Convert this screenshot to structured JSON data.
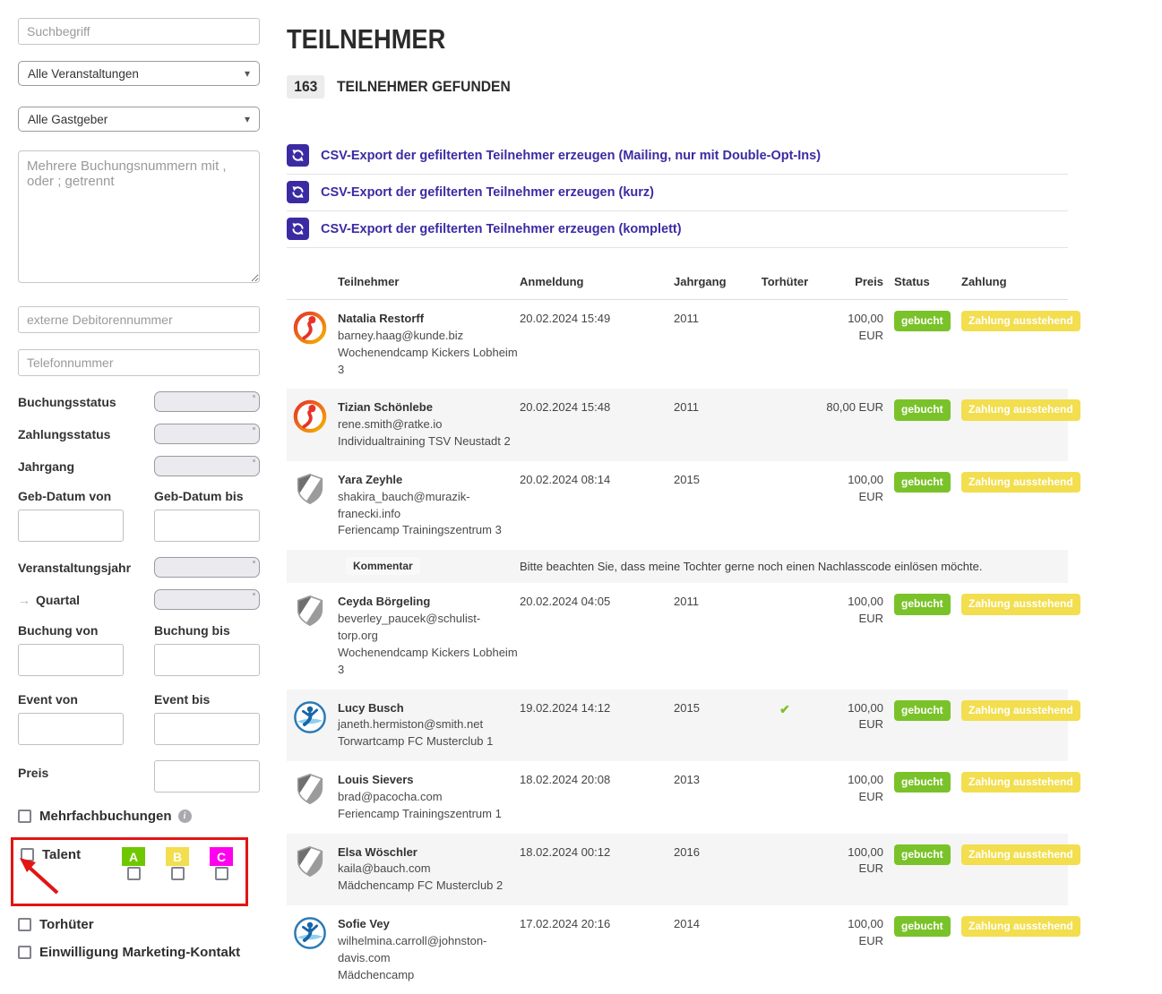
{
  "colors": {
    "accent_indigo": "#3b2ba3",
    "status_green": "#7ac229",
    "payment_yellow": "#f2de4e",
    "annotation_red": "#e31414",
    "check_green": "#77c322"
  },
  "icons": {
    "caret": "▾",
    "quartal_arrow": "→",
    "info": "i",
    "check": "✔"
  },
  "sidebar": {
    "search_placeholder": "Suchbegriff",
    "event_select": "Alle Veranstaltungen",
    "host_select": "Alle Gastgeber",
    "booking_numbers_placeholder": "Mehrere Buchungsnummern mit , oder ; getrennt",
    "debitor_placeholder": "externe Debitorennummer",
    "phone_placeholder": "Telefonnummer",
    "booking_status_label": "Buchungsstatus",
    "payment_status_label": "Zahlungsstatus",
    "year_label": "Jahrgang",
    "dob_from_label": "Geb-Datum von",
    "dob_to_label": "Geb-Datum bis",
    "event_year_label": "Veranstaltungsjahr",
    "quarter_label": "Quartal",
    "booking_from_label": "Buchung von",
    "booking_to_label": "Buchung bis",
    "event_from_label": "Event von",
    "event_to_label": "Event bis",
    "price_label": "Preis",
    "multi_bookings_label": "Mehrfachbuchungen",
    "talent_label": "Talent",
    "goalkeeper_label": "Torhüter",
    "marketing_label": "Einwilligung Marketing-Kontakt",
    "talent_levels": [
      {
        "label": "A",
        "color": "#6fc700"
      },
      {
        "label": "B",
        "color": "#f2de4e"
      },
      {
        "label": "C",
        "color": "#ff00ee"
      }
    ]
  },
  "header": {
    "title": "TEILNEHMER",
    "count": "163",
    "count_label": "TEILNEHMER GEFUNDEN"
  },
  "exports": [
    "CSV-Export der gefilterten Teilnehmer erzeugen (Mailing, nur mit Double-Opt-Ins)",
    "CSV-Export der gefilterten Teilnehmer erzeugen (kurz)",
    "CSV-Export der gefilterten Teilnehmer erzeugen (komplett)"
  ],
  "table": {
    "columns": [
      "Teilnehmer",
      "Anmeldung",
      "Jahrgang",
      "Torhüter",
      "Preis",
      "Status",
      "Zahlung"
    ],
    "comment_label": "Kommentar",
    "rows": [
      {
        "name": "Natalia Restorff",
        "email": "barney.haag@kunde.biz",
        "event": "Wochenendcamp Kickers Lobheim 3",
        "date": "20.02.2024 15:49",
        "year": "2011",
        "goalkeeper": false,
        "price": "100,00 EUR",
        "status": "gebucht",
        "payment": "Zahlung ausstehend",
        "avatar": "red-club-logo"
      },
      {
        "name": "Tizian Schönlebe",
        "email": "rene.smith@ratke.io",
        "event": "Individualtraining TSV Neustadt 2",
        "date": "20.02.2024 15:48",
        "year": "2011",
        "goalkeeper": false,
        "price": "80,00 EUR",
        "status": "gebucht",
        "payment": "Zahlung ausstehend",
        "avatar": "red-club-logo"
      },
      {
        "name": "Yara Zeyhle",
        "email": "shakira_bauch@murazik-franecki.info",
        "event": "Feriencamp Trainingszentrum 3",
        "date": "20.02.2024 08:14",
        "year": "2015",
        "goalkeeper": false,
        "price": "100,00 EUR",
        "status": "gebucht",
        "payment": "Zahlung ausstehend",
        "avatar": "shield-logo",
        "comment": "Bitte beachten Sie, dass meine Tochter gerne noch einen Nachlasscode einlösen möchte."
      },
      {
        "name": "Ceyda Börgeling",
        "email": "beverley_paucek@schulist-torp.org",
        "event": "Wochenendcamp Kickers Lobheim 3",
        "date": "20.02.2024 04:05",
        "year": "2011",
        "goalkeeper": false,
        "price": "100,00 EUR",
        "status": "gebucht",
        "payment": "Zahlung ausstehend",
        "avatar": "shield-logo"
      },
      {
        "name": "Lucy Busch",
        "email": "janeth.hermiston@smith.net",
        "event": "Torwartcamp FC Musterclub 1",
        "date": "19.02.2024 14:12",
        "year": "2015",
        "goalkeeper": true,
        "price": "100,00 EUR",
        "status": "gebucht",
        "payment": "Zahlung ausstehend",
        "avatar": "blue-club-logo"
      },
      {
        "name": "Louis Sievers",
        "email": "brad@pacocha.com",
        "event": "Feriencamp Trainingszentrum 1",
        "date": "18.02.2024 20:08",
        "year": "2013",
        "goalkeeper": false,
        "price": "100,00 EUR",
        "status": "gebucht",
        "payment": "Zahlung ausstehend",
        "avatar": "shield-logo"
      },
      {
        "name": "Elsa Wöschler",
        "email": "kaila@bauch.com",
        "event": "Mädchencamp FC Musterclub 2",
        "date": "18.02.2024 00:12",
        "year": "2016",
        "goalkeeper": false,
        "price": "100,00 EUR",
        "status": "gebucht",
        "payment": "Zahlung ausstehend",
        "avatar": "shield-logo"
      },
      {
        "name": "Sofie Vey",
        "email": "wilhelmina.carroll@johnston-davis.com",
        "event": "Mädchencamp",
        "date": "17.02.2024 20:16",
        "year": "2014",
        "goalkeeper": false,
        "price": "100,00 EUR",
        "status": "gebucht",
        "payment": "Zahlung ausstehend",
        "avatar": "blue-club-logo"
      }
    ]
  }
}
